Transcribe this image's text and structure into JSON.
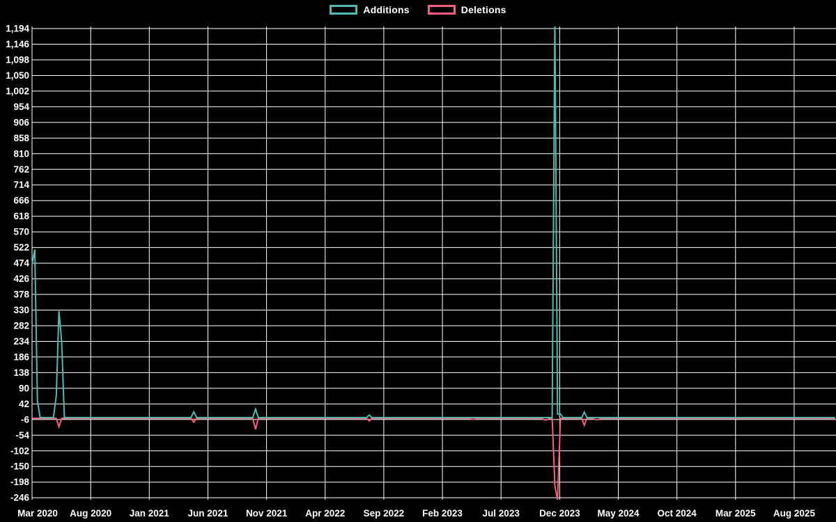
{
  "page": {
    "background": "#000000",
    "gridline_color": "#ffffff",
    "text_color": "#ffffff"
  },
  "legend": {
    "items": [
      {
        "label": "Additions",
        "color": "#4bbcb4"
      },
      {
        "label": "Deletions",
        "color": "#f85e7e"
      }
    ]
  },
  "chart_data": {
    "type": "line",
    "title": "",
    "xlabel": "",
    "ylabel": "",
    "grid": true,
    "legend_position": "top-center",
    "x_axis": {
      "tick_labels": [
        "Mar 2020",
        "Aug 2020",
        "Jan 2021",
        "Jun 2021",
        "Nov 2021",
        "Apr 2022",
        "Sep 2022",
        "Feb 2023",
        "Jul 2023",
        "Dec 2023",
        "May 2024",
        "Oct 2024",
        "Mar 2025",
        "Aug 2025"
      ],
      "start": "2020-03-01",
      "end": "2025-11-16"
    },
    "y_axis": {
      "min": -246,
      "max": 1194,
      "step": 48,
      "tick_labels": [
        "1,194",
        "1,146",
        "1,098",
        "1,050",
        "1,002",
        "954",
        "906",
        "858",
        "810",
        "762",
        "714",
        "666",
        "618",
        "570",
        "522",
        "474",
        "426",
        "378",
        "330",
        "282",
        "234",
        "186",
        "138",
        "90",
        "42",
        "-6",
        "-54",
        "-102",
        "-150",
        "-198",
        "-246"
      ]
    },
    "series": [
      {
        "name": "Additions",
        "color": "#4bbcb4",
        "points": [
          [
            "2020-03-01",
            470
          ],
          [
            "2020-03-08",
            516
          ],
          [
            "2020-03-15",
            53
          ],
          [
            "2020-03-22",
            0
          ],
          [
            "2020-04-26",
            0
          ],
          [
            "2020-05-03",
            68
          ],
          [
            "2020-05-10",
            327
          ],
          [
            "2020-05-17",
            235
          ],
          [
            "2020-05-24",
            0
          ],
          [
            "2021-04-18",
            0
          ],
          [
            "2021-04-25",
            18
          ],
          [
            "2021-05-02",
            0
          ],
          [
            "2021-09-26",
            0
          ],
          [
            "2021-10-03",
            26
          ],
          [
            "2021-10-10",
            0
          ],
          [
            "2022-07-17",
            0
          ],
          [
            "2022-07-24",
            8
          ],
          [
            "2022-07-31",
            0
          ],
          [
            "2023-11-12",
            0
          ],
          [
            "2023-11-19",
            1230
          ],
          [
            "2023-11-26",
            11
          ],
          [
            "2023-12-03",
            11
          ],
          [
            "2023-12-10",
            0
          ],
          [
            "2024-01-28",
            0
          ],
          [
            "2024-02-04",
            17
          ],
          [
            "2024-02-11",
            0
          ],
          [
            "2025-11-16",
            0
          ]
        ]
      },
      {
        "name": "Deletions",
        "color": "#f85e7e",
        "points": [
          [
            "2020-03-01",
            0
          ],
          [
            "2020-05-03",
            0
          ],
          [
            "2020-05-10",
            -26
          ],
          [
            "2020-05-17",
            0
          ],
          [
            "2021-04-18",
            0
          ],
          [
            "2021-04-25",
            -12
          ],
          [
            "2021-05-02",
            0
          ],
          [
            "2021-09-26",
            0
          ],
          [
            "2021-10-03",
            -34
          ],
          [
            "2021-10-10",
            0
          ],
          [
            "2022-07-17",
            0
          ],
          [
            "2022-07-24",
            -8
          ],
          [
            "2022-07-31",
            0
          ],
          [
            "2023-04-09",
            0
          ],
          [
            "2023-04-16",
            -3
          ],
          [
            "2023-04-23",
            -3
          ],
          [
            "2023-04-30",
            0
          ],
          [
            "2023-10-15",
            0
          ],
          [
            "2023-10-22",
            -5
          ],
          [
            "2023-10-29",
            -5
          ],
          [
            "2023-11-05",
            0
          ],
          [
            "2023-11-12",
            0
          ],
          [
            "2023-11-19",
            -207
          ],
          [
            "2023-11-26",
            -252
          ],
          [
            "2023-12-03",
            0
          ],
          [
            "2024-01-28",
            0
          ],
          [
            "2024-02-04",
            -21
          ],
          [
            "2024-02-11",
            0
          ],
          [
            "2024-02-25",
            0
          ],
          [
            "2024-03-03",
            -4
          ],
          [
            "2024-03-10",
            -4
          ],
          [
            "2024-03-17",
            0
          ],
          [
            "2025-11-16",
            0
          ]
        ]
      }
    ]
  }
}
